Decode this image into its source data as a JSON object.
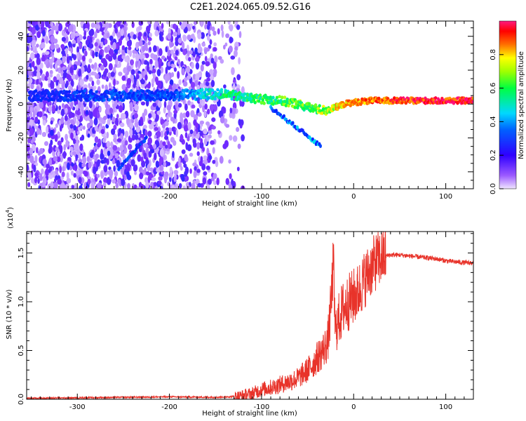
{
  "chart_data": [
    {
      "type": "heatmap",
      "title": "C2E1.2024.065.09.52.G16",
      "xlabel": "Height of straight line (km)",
      "ylabel": "Frequency (Hz)",
      "xlim": [
        -355,
        130
      ],
      "ylim": [
        -50,
        49
      ],
      "xticks": [
        -300,
        -200,
        -100,
        0,
        100
      ],
      "xtick_labels": [
        "-300",
        "-200",
        "-100",
        "0",
        "100"
      ],
      "yticks": [
        -40,
        -20,
        0,
        20,
        40
      ],
      "ytick_labels": [
        "-40",
        "-20",
        "0",
        "20",
        "40"
      ],
      "colorbar": {
        "label": "Normalized spectral amplitude",
        "range": [
          0,
          1
        ],
        "ticks": [
          0.0,
          0.2,
          0.4,
          0.6,
          0.8
        ],
        "tick_labels": [
          "0.0",
          "0.2",
          "0.4",
          "0.6",
          "0.8"
        ],
        "colormap": [
          "#f0e6ff",
          "#7b2cff",
          "#0022ff",
          "#00d8ff",
          "#00ff40",
          "#ffff00",
          "#ff7000",
          "#ff0000",
          "#ff1080"
        ]
      },
      "ridge": {
        "x": [
          -350,
          -300,
          -250,
          -200,
          -150,
          -140,
          -120,
          -100,
          -80,
          -60,
          -50,
          -40,
          -30,
          -20,
          -10,
          0,
          20,
          50,
          80,
          110,
          130
        ],
        "y": [
          5,
          5,
          5,
          5,
          6,
          6,
          4,
          3,
          2,
          0,
          -2,
          -3,
          -4,
          -2,
          0,
          1,
          2,
          2,
          2,
          2,
          2
        ],
        "amplitude": [
          0.25,
          0.28,
          0.3,
          0.3,
          0.45,
          0.5,
          0.5,
          0.55,
          0.55,
          0.6,
          0.55,
          0.6,
          0.65,
          0.7,
          0.75,
          0.8,
          0.85,
          0.9,
          0.92,
          0.95,
          0.95
        ]
      }
    },
    {
      "type": "line",
      "title": "",
      "xlabel": "Height of straight line (km)",
      "ylabel": "SNR (10 * v/v)",
      "y_multiplier": "(x10^4)",
      "xlim": [
        -355,
        130
      ],
      "ylim": [
        0,
        1.72
      ],
      "xticks": [
        -300,
        -200,
        -100,
        0,
        100
      ],
      "xtick_labels": [
        "-300",
        "-200",
        "-100",
        "0",
        "100"
      ],
      "yticks": [
        0,
        0.5,
        1.0,
        1.5
      ],
      "ytick_labels": [
        "0.0",
        "0.5",
        "1.0",
        "1.5"
      ],
      "color": "#e8332a",
      "series": [
        {
          "x": [
            -355,
            -300,
            -250,
            -200,
            -150,
            -125,
            -110,
            -100,
            -90,
            -80,
            -70,
            -60,
            -50,
            -45,
            -40,
            -35,
            -30,
            -28,
            -25,
            -22,
            -20,
            -15,
            -10,
            -5,
            0,
            5,
            10,
            15,
            20,
            25,
            30,
            35,
            40,
            50,
            60,
            70,
            80,
            90,
            100,
            110,
            120,
            130
          ],
          "y": [
            0.01,
            0.015,
            0.02,
            0.025,
            0.02,
            0.03,
            0.06,
            0.1,
            0.12,
            0.15,
            0.18,
            0.22,
            0.3,
            0.35,
            0.42,
            0.48,
            0.55,
            0.6,
            0.9,
            1.4,
            0.7,
            0.85,
            0.95,
            1.0,
            1.05,
            1.1,
            1.2,
            1.28,
            1.36,
            1.42,
            1.45,
            1.47,
            1.48,
            1.48,
            1.47,
            1.46,
            1.45,
            1.44,
            1.42,
            1.41,
            1.4,
            1.4
          ]
        }
      ]
    }
  ]
}
